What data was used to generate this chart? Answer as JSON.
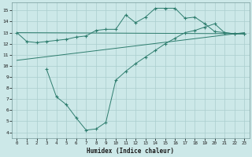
{
  "line1_x": [
    0,
    1,
    2,
    3,
    4,
    5,
    6,
    7,
    8,
    9,
    10,
    11,
    12,
    13,
    14,
    15,
    16,
    17,
    18,
    19,
    20,
    21,
    22,
    23
  ],
  "line1_y": [
    13.0,
    12.2,
    12.1,
    12.2,
    12.3,
    12.4,
    12.6,
    12.7,
    13.2,
    13.3,
    13.3,
    14.6,
    13.9,
    14.4,
    15.2,
    15.2,
    15.2,
    14.3,
    14.4,
    13.8,
    13.1,
    13.0,
    12.9,
    12.9
  ],
  "line2_x": [
    0,
    23
  ],
  "line2_y": [
    13.0,
    12.9
  ],
  "line3_x": [
    0,
    23
  ],
  "line3_y": [
    10.5,
    13.0
  ],
  "line4_x": [
    3,
    4,
    5,
    6,
    7,
    8,
    9,
    10,
    11,
    12,
    13,
    14,
    15,
    16,
    17,
    18,
    19,
    20,
    21,
    22,
    23
  ],
  "line4_y": [
    9.7,
    7.2,
    6.5,
    5.3,
    4.2,
    4.3,
    4.9,
    8.7,
    9.5,
    10.2,
    10.8,
    11.4,
    12.0,
    12.5,
    13.0,
    13.2,
    13.5,
    13.8,
    13.0,
    12.9,
    12.9
  ],
  "line_color": "#2e7d6e",
  "bg_color": "#cce8e8",
  "grid_color": "#aacece",
  "xlabel": "Humidex (Indice chaleur)",
  "xlim": [
    -0.5,
    23.5
  ],
  "ylim": [
    3.5,
    15.7
  ],
  "yticks": [
    4,
    5,
    6,
    7,
    8,
    9,
    10,
    11,
    12,
    13,
    14,
    15
  ],
  "xticks": [
    0,
    1,
    2,
    3,
    4,
    5,
    6,
    7,
    8,
    9,
    10,
    11,
    12,
    13,
    14,
    15,
    16,
    17,
    18,
    19,
    20,
    21,
    22,
    23
  ]
}
